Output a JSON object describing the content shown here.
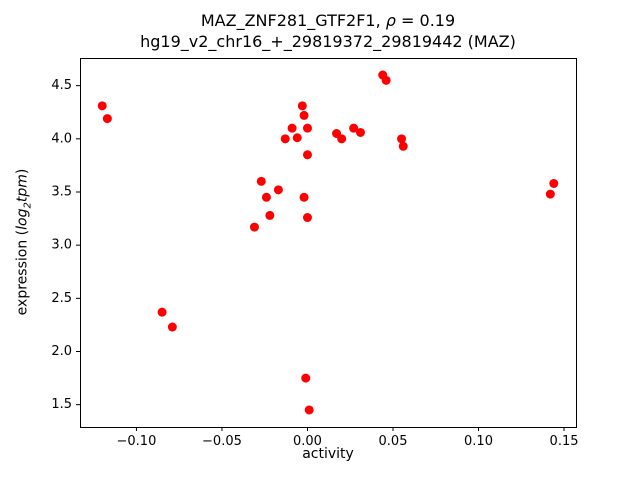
{
  "figure": {
    "title_line1": {
      "prefix": "MAZ_ZNF281_GTF2F1, ",
      "rho": "ρ",
      "suffix": " = 0.19"
    },
    "title_line2": "hg19_v2_chr16_+_29819372_29819442 (MAZ)",
    "xlabel": "activity",
    "ylabel": {
      "prefix": "expression (",
      "log": "log",
      "sub": "2",
      "unit": "tpm",
      "suffix": ")"
    }
  },
  "chart_data": {
    "type": "scatter",
    "title": "MAZ_ZNF281_GTF2F1, ρ = 0.19\nhg19_v2_chr16_+_29819372_29819442 (MAZ)",
    "xlabel": "activity",
    "ylabel": "expression (log2 tpm)",
    "legend": "none",
    "grid": false,
    "marker_color": "#ff0000",
    "marker_shape": "circle",
    "xlim": [
      -0.133,
      0.157
    ],
    "ylim": [
      1.29,
      4.76
    ],
    "xticks": [
      -0.1,
      -0.05,
      0.0,
      0.05,
      0.1,
      0.15
    ],
    "xtick_labels": [
      "−0.10",
      "−0.05",
      "0.00",
      "0.05",
      "0.10",
      "0.15"
    ],
    "yticks": [
      1.5,
      2.0,
      2.5,
      3.0,
      3.5,
      4.0,
      4.5
    ],
    "ytick_labels": [
      "1.5",
      "2.0",
      "2.5",
      "3.0",
      "3.5",
      "4.0",
      "4.5"
    ],
    "points": [
      [
        -0.12,
        4.31
      ],
      [
        -0.117,
        4.19
      ],
      [
        -0.085,
        2.37
      ],
      [
        -0.079,
        2.23
      ],
      [
        -0.031,
        3.17
      ],
      [
        -0.027,
        3.6
      ],
      [
        -0.024,
        3.45
      ],
      [
        -0.022,
        3.28
      ],
      [
        -0.017,
        3.52
      ],
      [
        -0.013,
        4.0
      ],
      [
        -0.009,
        4.1
      ],
      [
        -0.006,
        4.01
      ],
      [
        -0.003,
        4.31
      ],
      [
        -0.002,
        4.22
      ],
      [
        0.0,
        4.1
      ],
      [
        0.0,
        3.85
      ],
      [
        -0.002,
        3.45
      ],
      [
        0.0,
        3.26
      ],
      [
        -0.001,
        1.75
      ],
      [
        0.001,
        1.45
      ],
      [
        0.017,
        4.05
      ],
      [
        0.02,
        4.0
      ],
      [
        0.027,
        4.1
      ],
      [
        0.031,
        4.06
      ],
      [
        0.044,
        4.6
      ],
      [
        0.046,
        4.55
      ],
      [
        0.055,
        4.0
      ],
      [
        0.056,
        3.93
      ],
      [
        0.142,
        3.48
      ],
      [
        0.144,
        3.58
      ]
    ]
  }
}
